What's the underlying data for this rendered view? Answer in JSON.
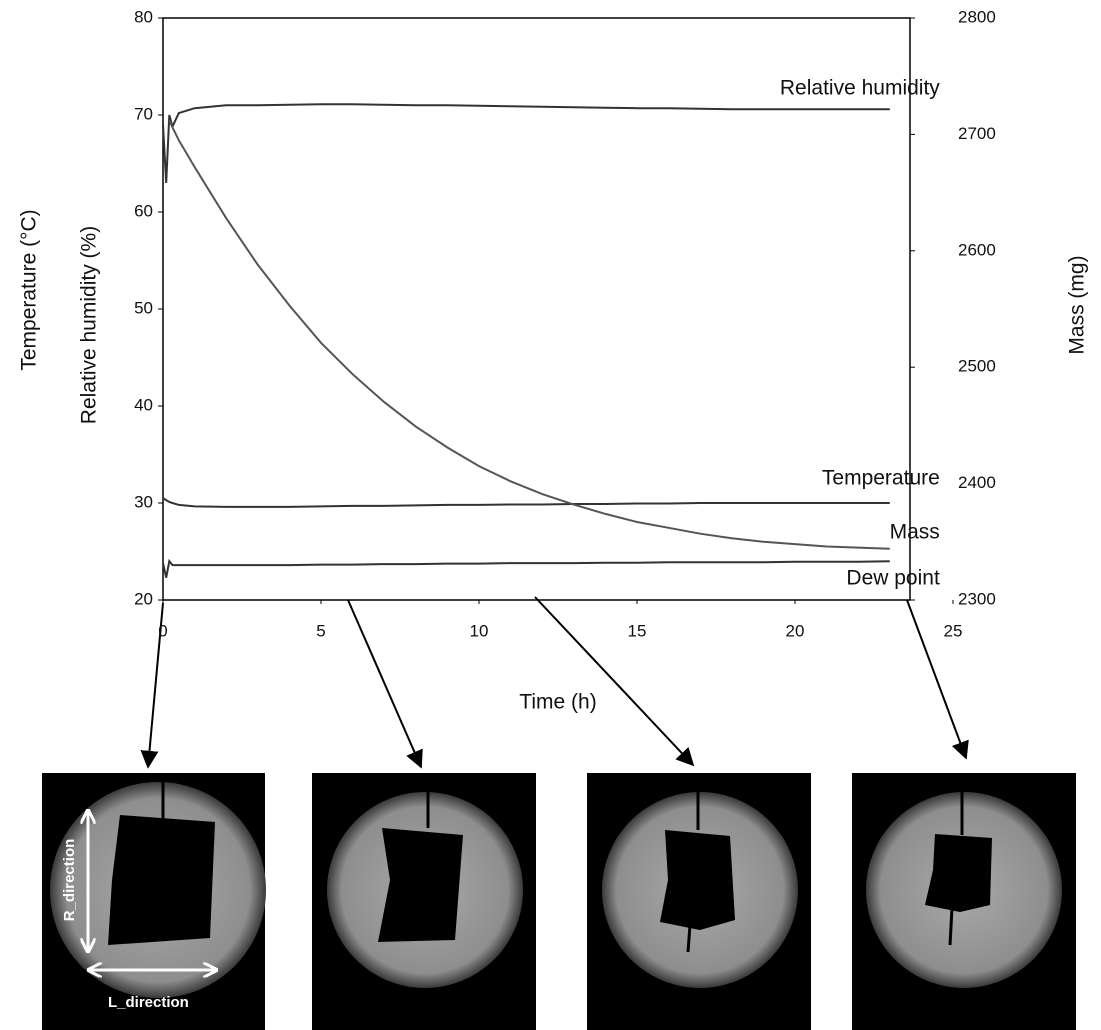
{
  "chart_data": {
    "type": "line",
    "x_label": "Time (h)",
    "y_labels": [
      "Temperature (°C)",
      "Relative humidity (%)"
    ],
    "y2_label": "Mass (mg)",
    "xlim": [
      0,
      25
    ],
    "xticks": [
      0,
      5,
      10,
      15,
      20,
      25
    ],
    "ylim": [
      20,
      80
    ],
    "yticks": [
      20,
      30,
      40,
      50,
      60,
      70,
      80
    ],
    "y2lim": [
      2300,
      2800
    ],
    "y2ticks": [
      2300,
      2400,
      2500,
      2600,
      2700,
      2800
    ],
    "grid": false,
    "x": [
      0,
      0.1,
      0.2,
      0.3,
      0.5,
      1,
      2,
      3,
      4,
      5,
      6,
      7,
      8,
      9,
      10,
      11,
      12,
      13,
      14,
      15,
      16,
      17,
      18,
      19,
      20,
      21,
      22,
      23
    ],
    "series": [
      {
        "name": "Relative humidity",
        "color": "#333333",
        "values": [
          69,
          63,
          70,
          68.8,
          70.2,
          70.7,
          71,
          71,
          71.05,
          71.1,
          71.1,
          71.05,
          71,
          71,
          70.95,
          70.9,
          70.85,
          70.8,
          70.75,
          70.7,
          70.7,
          70.65,
          70.6,
          70.6,
          70.6,
          70.6,
          70.6,
          70.6
        ]
      },
      {
        "name": "Temperature",
        "color": "#333333",
        "values": [
          30.5,
          30.3,
          30.1,
          30,
          29.8,
          29.65,
          29.6,
          29.6,
          29.6,
          29.65,
          29.7,
          29.7,
          29.75,
          29.8,
          29.8,
          29.85,
          29.85,
          29.9,
          29.9,
          29.95,
          29.95,
          30,
          30,
          30,
          30,
          30,
          30,
          30
        ]
      },
      {
        "name": "Mass",
        "color": "#555555",
        "axis": "y2",
        "values": [
          null,
          null,
          2712,
          2706,
          2695,
          2672,
          2628,
          2588,
          2553,
          2521,
          2494,
          2470,
          2449,
          2431,
          2415,
          2402,
          2391,
          2382,
          2374,
          2367,
          2362,
          2357,
          2353,
          2350,
          2348,
          2346,
          2345,
          2344
        ]
      },
      {
        "name": "Dew point",
        "color": "#333333",
        "values": [
          23.8,
          22.3,
          24,
          23.6,
          23.6,
          23.6,
          23.6,
          23.6,
          23.6,
          23.65,
          23.65,
          23.7,
          23.7,
          23.75,
          23.75,
          23.8,
          23.8,
          23.8,
          23.85,
          23.85,
          23.9,
          23.9,
          23.9,
          23.9,
          23.95,
          23.95,
          23.95,
          24
        ]
      }
    ]
  },
  "photos": {
    "labels": [
      "R_direction",
      "L_direction"
    ]
  }
}
